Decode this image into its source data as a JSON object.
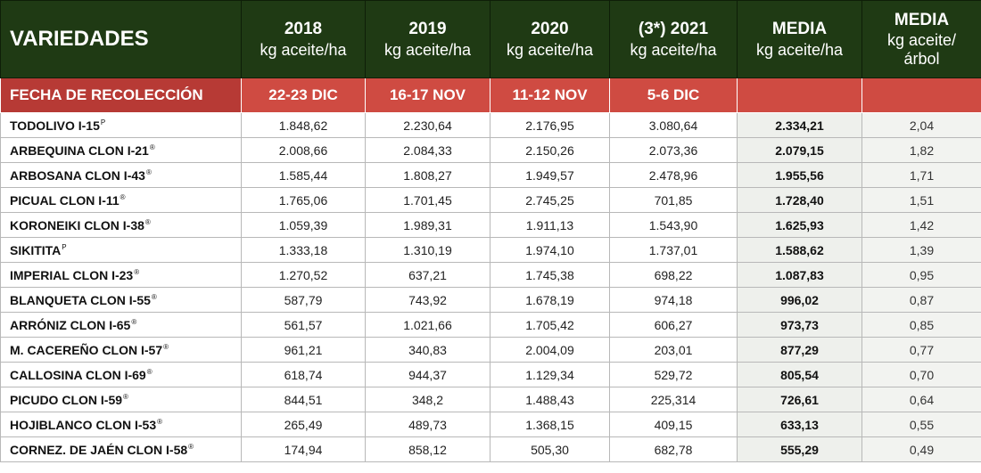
{
  "headers": {
    "varieties": "VARIEDADES",
    "cols": [
      {
        "year": "2018",
        "unit": "kg aceite/ha"
      },
      {
        "year": "2019",
        "unit": "kg aceite/ha"
      },
      {
        "year": "2020",
        "unit": "kg aceite/ha"
      },
      {
        "year": "(3*) 2021",
        "unit": "kg aceite/ha"
      },
      {
        "year": "MEDIA",
        "unit": "kg aceite/ha"
      },
      {
        "year": "MEDIA",
        "unit": "kg aceite/",
        "unit2": "árbol"
      }
    ]
  },
  "harvest": {
    "label": "FECHA DE RECOLECCIÓN",
    "dates": [
      "22-23 DIC",
      "16-17 NOV",
      "11-12 NOV",
      "5-6 DIC",
      "",
      ""
    ]
  },
  "rows": [
    {
      "name": "TODOLIVO I-15",
      "mark": "P",
      "v": [
        "1.848,62",
        "2.230,64",
        "2.176,95",
        "3.080,64",
        "2.334,21",
        "2,04"
      ]
    },
    {
      "name": "ARBEQUINA CLON I-21",
      "mark": "®",
      "v": [
        "2.008,66",
        "2.084,33",
        "2.150,26",
        "2.073,36",
        "2.079,15",
        "1,82"
      ]
    },
    {
      "name": "ARBOSANA CLON I-43",
      "mark": "®",
      "v": [
        "1.585,44",
        "1.808,27",
        "1.949,57",
        "2.478,96",
        "1.955,56",
        "1,71"
      ]
    },
    {
      "name": "PICUAL CLON I-11",
      "mark": "®",
      "v": [
        "1.765,06",
        "1.701,45",
        "2.745,25",
        "701,85",
        "1.728,40",
        "1,51"
      ]
    },
    {
      "name": "KORONEIKI CLON I-38",
      "mark": "®",
      "v": [
        "1.059,39",
        "1.989,31",
        "1.911,13",
        "1.543,90",
        "1.625,93",
        "1,42"
      ]
    },
    {
      "name": "SIKITITA",
      "mark": "P",
      "v": [
        "1.333,18",
        "1.310,19",
        "1.974,10",
        "1.737,01",
        "1.588,62",
        "1,39"
      ]
    },
    {
      "name": "IMPERIAL CLON I-23",
      "mark": "®",
      "v": [
        "1.270,52",
        "637,21",
        "1.745,38",
        "698,22",
        "1.087,83",
        "0,95"
      ]
    },
    {
      "name": "BLANQUETA CLON I-55",
      "mark": "®",
      "v": [
        "587,79",
        "743,92",
        "1.678,19",
        "974,18",
        "996,02",
        "0,87"
      ]
    },
    {
      "name": "ARRÓNIZ CLON I-65",
      "mark": "®",
      "v": [
        "561,57",
        "1.021,66",
        "1.705,42",
        "606,27",
        "973,73",
        "0,85"
      ]
    },
    {
      "name": "M. CACEREÑO CLON I-57",
      "mark": "®",
      "v": [
        "961,21",
        "340,83",
        "2.004,09",
        "203,01",
        "877,29",
        "0,77"
      ]
    },
    {
      "name": "CALLOSINA CLON I-69",
      "mark": "®",
      "v": [
        "618,74",
        "944,37",
        "1.129,34",
        "529,72",
        "805,54",
        "0,70"
      ]
    },
    {
      "name": "PICUDO CLON I-59",
      "mark": "®",
      "v": [
        "844,51",
        "348,2",
        "1.488,43",
        "225,314",
        "726,61",
        "0,64"
      ]
    },
    {
      "name": "HOJIBLANCO CLON I-53",
      "mark": "®",
      "v": [
        "265,49",
        "489,73",
        "1.368,15",
        "409,15",
        "633,13",
        "0,55"
      ]
    },
    {
      "name": "CORNEZ. DE JAÉN CLON I-58",
      "mark": "®",
      "v": [
        "174,94",
        "858,12",
        "505,30",
        "682,78",
        "555,29",
        "0,49"
      ]
    }
  ]
}
